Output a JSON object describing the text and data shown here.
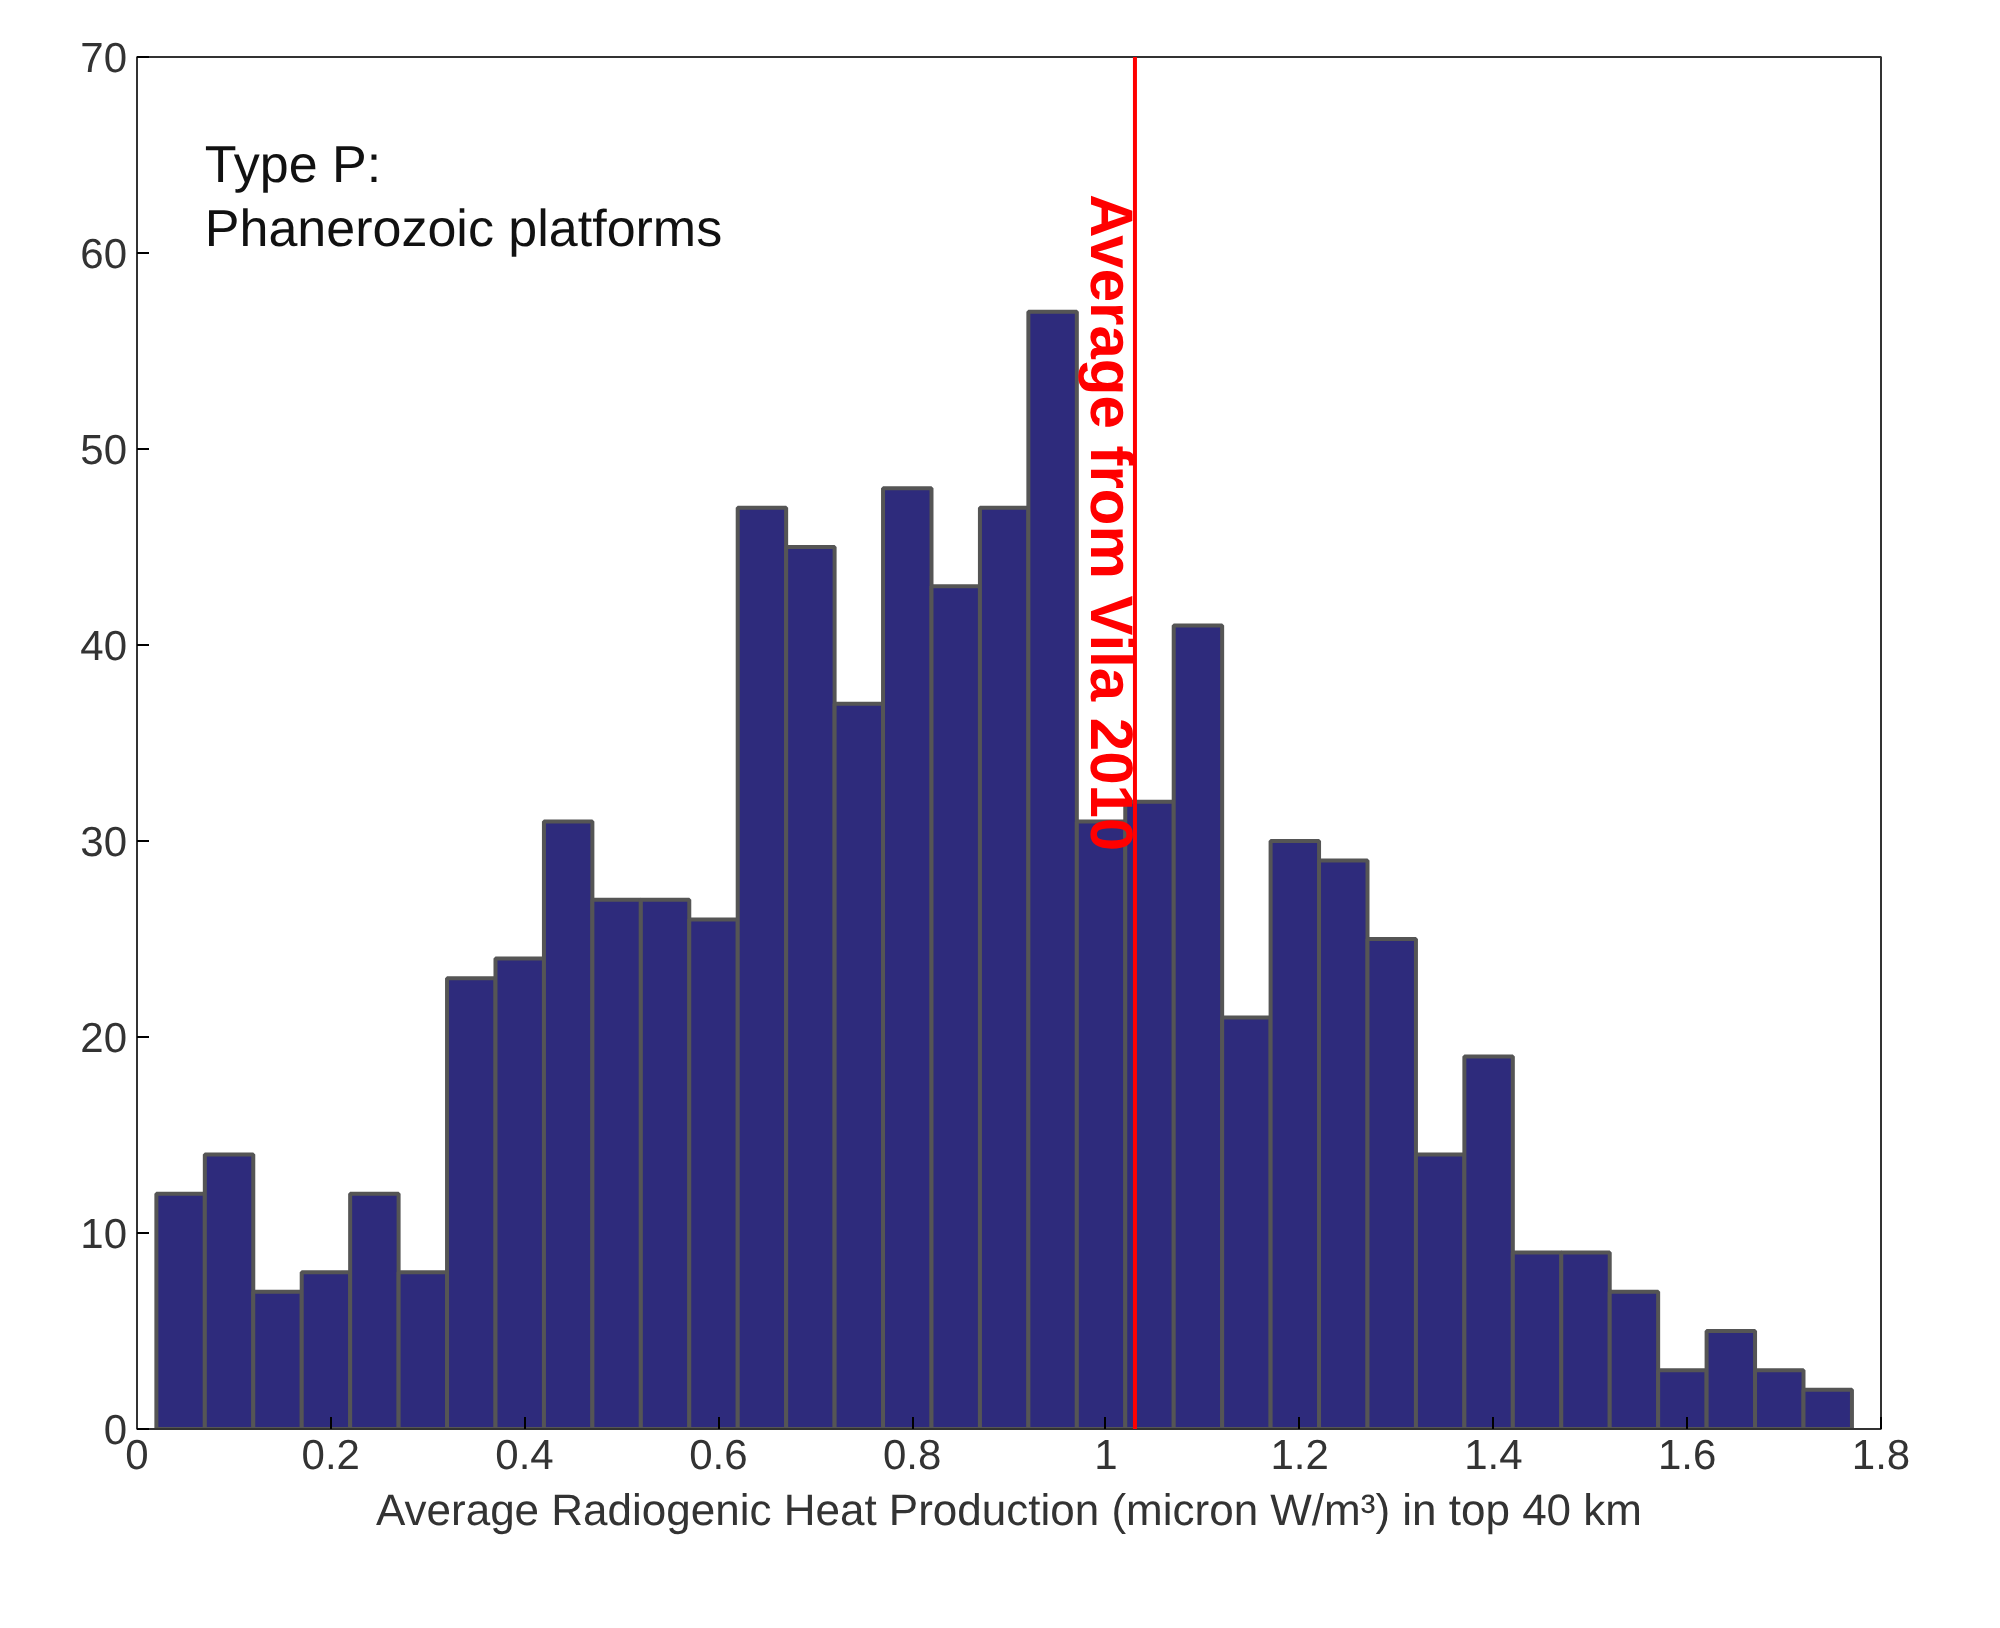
{
  "chart_data": {
    "type": "histogram",
    "xlabel": "Average Radiogenic Heat Production (micron W/m³) in top 40 km",
    "bins": [
      0.02,
      0.07,
      0.12,
      0.17,
      0.22,
      0.27,
      0.32,
      0.37,
      0.42,
      0.47,
      0.52,
      0.57,
      0.62,
      0.67,
      0.72,
      0.77,
      0.82,
      0.87,
      0.92,
      0.97,
      1.02,
      1.07,
      1.12,
      1.17,
      1.22,
      1.27,
      1.32,
      1.37,
      1.42,
      1.47,
      1.52,
      1.57,
      1.62,
      1.67,
      1.72,
      1.77
    ],
    "values": [
      12,
      14,
      7,
      8,
      12,
      8,
      23,
      24,
      31,
      27,
      27,
      26,
      47,
      45,
      37,
      48,
      43,
      47,
      57,
      31,
      32,
      41,
      21,
      30,
      29,
      25,
      14,
      19,
      9,
      9,
      7,
      3,
      5,
      3,
      2
    ],
    "color": "#2e2b7c",
    "xlim": [
      0,
      1.8
    ],
    "ylim": [
      0,
      70
    ],
    "xticks": [
      0,
      0.2,
      0.4,
      0.6,
      0.8,
      1,
      1.2,
      1.4,
      1.6,
      1.8
    ],
    "yticks": [
      0,
      10,
      20,
      30,
      40,
      50,
      60,
      70
    ],
    "grid": false,
    "ref_lines": [
      {
        "axis": "x",
        "value": 1.03,
        "label": "Average from Vila 2010",
        "color": "#ff0000"
      }
    ],
    "annotations": [
      "Type P:",
      "Phanerozoic platforms"
    ]
  }
}
